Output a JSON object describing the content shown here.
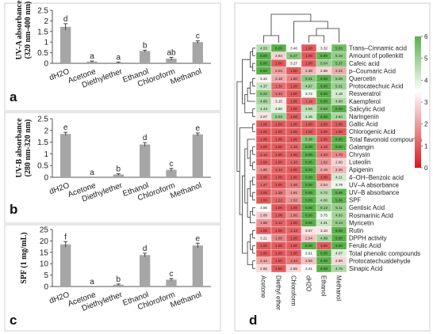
{
  "panel_letters": [
    "a",
    "b",
    "c",
    "d"
  ],
  "chart_data": [
    {
      "type": "bar",
      "panel": "a",
      "ylabel_lines": [
        "UV-A absorbance",
        "(320 nm-400 nm)"
      ],
      "categories": [
        "dH2O",
        "Acetone",
        "Diethylether",
        "Ethanol",
        "Chloroform",
        "Methanol"
      ],
      "values": [
        1.72,
        0.08,
        0.04,
        0.58,
        0.22,
        1.0
      ],
      "errors": [
        0.15,
        0.03,
        0.02,
        0.04,
        0.06,
        0.06
      ],
      "letters": [
        "d",
        "a",
        "a",
        "b",
        "ab",
        "c"
      ],
      "ylim": [
        0,
        2.5
      ],
      "yticks": [
        0,
        0.5,
        1,
        1.5,
        2,
        2.5
      ],
      "yticklabels": [
        "0",
        "0.5",
        "1",
        "1.5",
        "2",
        "2.5"
      ],
      "bar_color": "#a6a6a6"
    },
    {
      "type": "bar",
      "panel": "b",
      "ylabel_lines": [
        "UV-B absorbance",
        "(280 nm-320 nm)"
      ],
      "categories": [
        "dH2O",
        "Acetone",
        "Diethylether",
        "Ethanol",
        "Chloroform",
        "Methanol"
      ],
      "values": [
        1.85,
        0.0,
        0.12,
        1.4,
        0.32,
        1.83
      ],
      "errors": [
        0.07,
        0.0,
        0.03,
        0.08,
        0.06,
        0.06
      ],
      "letters": [
        "e",
        "a",
        "b",
        "d",
        "c",
        "e"
      ],
      "ylim": [
        0,
        2.5
      ],
      "yticks": [
        0,
        0.5,
        1,
        1.5,
        2,
        2.5
      ],
      "yticklabels": [
        "0",
        "0.5",
        "1",
        "1.5",
        "2",
        "2.5"
      ],
      "bar_color": "#a6a6a6"
    },
    {
      "type": "bar",
      "panel": "c",
      "ylabel_lines": [
        "SPF (1 mg/mL)"
      ],
      "categories": [
        "dH2O",
        "Acetone",
        "Diethylether",
        "Ethanol",
        "Chloroform",
        "Methanol"
      ],
      "values": [
        18.5,
        0.0,
        0.8,
        13.8,
        3.0,
        18.0
      ],
      "errors": [
        1.2,
        0.0,
        0.3,
        0.8,
        0.5,
        1.0
      ],
      "letters": [
        "f",
        "a",
        "b",
        "d",
        "c",
        "e"
      ],
      "ylim": [
        0,
        25
      ],
      "yticks": [
        0,
        5,
        10,
        15,
        20,
        25
      ],
      "yticklabels": [
        "0",
        "5",
        "10",
        "15",
        "20",
        "25"
      ],
      "bar_color": "#a6a6a6"
    },
    {
      "type": "heatmap",
      "panel": "d",
      "columns": [
        "Acetone",
        "Diethyl ether",
        "Chloroform",
        "dH2O",
        "Ethanol",
        "Methanol"
      ],
      "rows": [
        "Trans–Cinnamic acid",
        "Amount of pollenkitt",
        "Cafeic acid",
        "p–Coumaric Acid",
        "Quercetin",
        "Protocatechuic Acid",
        "Resveratrol",
        "Kaempferol",
        "Salicylic Acid",
        "Naringenin",
        "Gallic Acid",
        "Chlorogenic Acid",
        "Total flavonoid compounds",
        "Galangin",
        "Chrysin",
        "Luteolin",
        "Apigenin",
        "4–OH–Benzoic acid",
        "UV–A absorbance",
        "UV–B absorbance",
        "SPF",
        "Gentisic Acid",
        "Rosmarinic Acid",
        "Myricetin",
        "Rutin",
        "DPPH activity",
        "Ferulic Acid",
        "Total phenolic compounds",
        "Protocatechualdehyde",
        "Sinapic Acid"
      ],
      "values": [
        [
          4.53,
          6.0,
          3.46,
          1.0,
          3.32,
          5.63
        ],
        [
          6.0,
          2.83,
          5.27,
          1.0,
          5.89,
          5.16
        ],
        [
          6.0,
          1.0,
          3.27,
          1.0,
          5.04,
          5.37
        ],
        [
          6.0,
          2.04,
          1.0,
          2.38,
          2.88,
          2.22
        ],
        [
          3.32,
          2.18,
          1.6,
          5.31,
          6.0,
          5.05
        ],
        [
          4.37,
          1.3,
          1.0,
          4.87,
          6.0,
          5.01
        ],
        [
          5.22,
          1.43,
          1.0,
          3.72,
          6.0,
          4.18
        ],
        [
          4.86,
          3.15,
          1.0,
          1.18,
          6.0,
          4.68
        ],
        [
          4.43,
          3.9,
          1.0,
          4.56,
          5.59,
          6.0
        ],
        [
          3.07,
          5.03,
          1.0,
          4.35,
          6.0,
          4.84
        ],
        [
          1.0,
          1.0,
          1.0,
          1.0,
          1.0,
          1.0
        ],
        [
          1.0,
          1.0,
          1.0,
          1.0,
          1.0,
          1.0
        ],
        [
          1.0,
          1.0,
          1.0,
          5.38,
          1.0,
          6.0
        ],
        [
          1.0,
          1.0,
          1.19,
          6.0,
          1.18,
          6.0
        ],
        [
          1.14,
          1.0,
          1.0,
          6.0,
          1.43,
          1.7
        ],
        [
          1.04,
          1.0,
          1.18,
          6.0,
          1.82,
          2.8
        ],
        [
          1.8,
          1.14,
          1.0,
          6.0,
          2.16,
          2.4
        ],
        [
          1.0,
          1.0,
          1.0,
          6.0,
          1.0,
          4.21
        ],
        [
          1.27,
          1.0,
          1.48,
          6.0,
          2.53,
          3.79
        ],
        [
          1.0,
          1.38,
          1.91,
          6.0,
          4.72,
          5.89
        ],
        [
          1.0,
          1.22,
          1.82,
          6.0,
          4.66,
          5.88
        ],
        [
          3.56,
          1.0,
          1.0,
          6.0,
          5.13,
          5.11
        ],
        [
          2.68,
          1.08,
          1.66,
          6.0,
          3.75,
          4.93
        ],
        [
          1.86,
          1.12,
          1.0,
          6.0,
          4.31,
          5.14
        ],
        [
          1.0,
          1.0,
          1.13,
          3.07,
          3.1,
          6.0
        ],
        [
          3.21,
          1.65,
          1.0,
          2.54,
          4.89,
          6.0
        ],
        [
          1.0,
          1.0,
          1.0,
          6.0,
          1.0,
          6.0
        ],
        [
          1.0,
          1.0,
          1.0,
          3.61,
          6.0,
          4.07
        ],
        [
          2.14,
          1.0,
          1.44,
          2.56,
          6.0,
          2.88
        ],
        [
          2.86,
          1.0,
          2.85,
          3.41,
          6.0,
          4.75
        ]
      ],
      "vmin": 0,
      "vmax": 6,
      "colorbar_ticks": [
        0,
        1,
        2,
        3,
        4,
        5,
        6
      ],
      "colorbar_ticklabels": [
        "0",
        "1",
        "2",
        "3",
        "4",
        "5",
        "6"
      ],
      "colormap": [
        "#d7191c",
        "#ffffff",
        "#5ab04a"
      ]
    }
  ]
}
